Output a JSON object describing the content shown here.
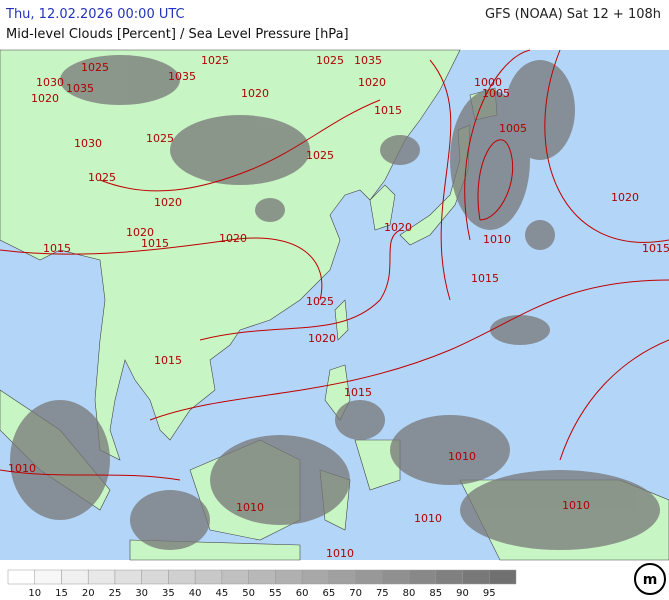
{
  "header": {
    "datetime": "Thu, 12.02.2026 00:00 UTC",
    "model": "GFS (NOAA) Sat 12 + 108h",
    "title": "Mid-level Clouds [Percent] / Sea Level Pressure [hPa]"
  },
  "isobar_labels": [
    "1025",
    "1030",
    "1035",
    "1020",
    "1035",
    "1025",
    "1025",
    "1035",
    "1020",
    "1015",
    "1020",
    "1025",
    "1030",
    "1025",
    "1025",
    "1020",
    "1020",
    "1015",
    "1020",
    "1015",
    "1020",
    "1000",
    "1005",
    "1005",
    "1020",
    "1010",
    "1015",
    "1015",
    "1025",
    "1020",
    "1015",
    "1015",
    "1010",
    "1010",
    "1010",
    "1010",
    "1010",
    "1010"
  ],
  "legend": {
    "labels": [
      10,
      15,
      20,
      25,
      30,
      35,
      40,
      45,
      50,
      55,
      60,
      65,
      70,
      75,
      80,
      85,
      90,
      95
    ],
    "colors": [
      "#ffffff",
      "#f7f7f7",
      "#f0f0f0",
      "#e8e8e8",
      "#e0e0e0",
      "#d8d8d8",
      "#d0d0d0",
      "#c8c8c8",
      "#c0c0c0",
      "#b8b8b8",
      "#b0b0b0",
      "#a8a8a8",
      "#a0a0a0",
      "#989898",
      "#909090",
      "#888888",
      "#808080",
      "#787878",
      "#707070"
    ]
  }
}
